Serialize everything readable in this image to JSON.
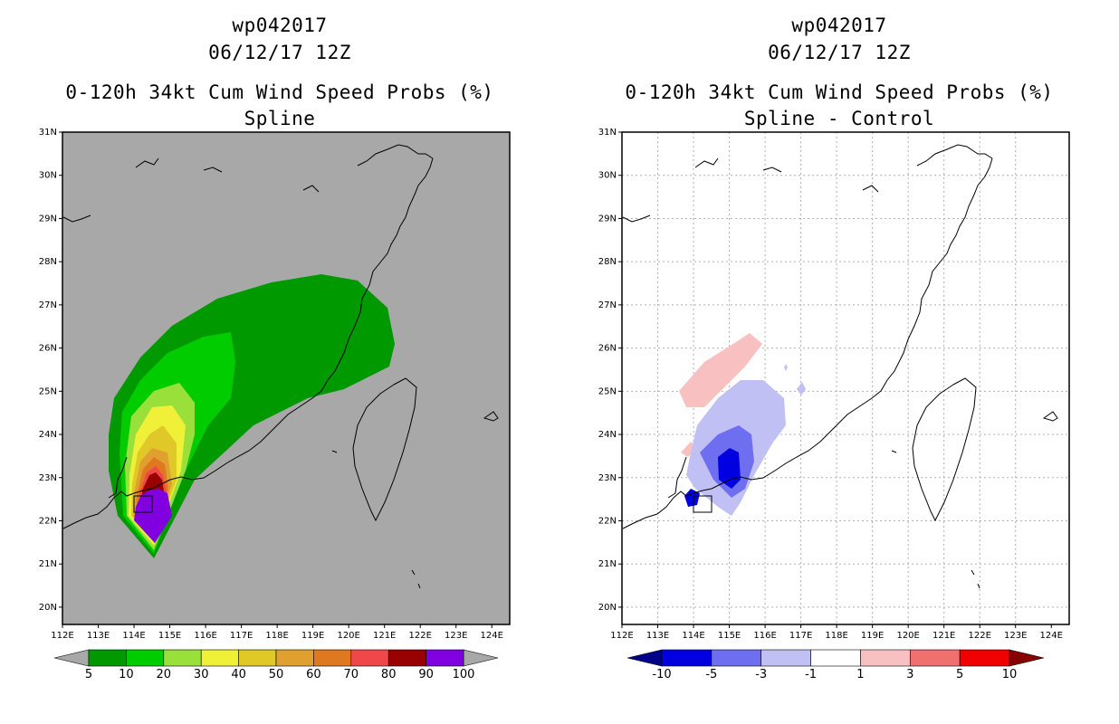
{
  "panels": [
    {
      "storm_id": "wp042017",
      "datetime": "06/12/17 12Z",
      "product": "0-120h 34kt Cum Wind Speed Probs (%)",
      "subtitle": "Spline",
      "background_color": "#a8a8a8",
      "colorbar": {
        "labels": [
          "5",
          "10",
          "20",
          "30",
          "40",
          "50",
          "60",
          "70",
          "80",
          "90",
          "100"
        ],
        "colors": [
          "#009900",
          "#00cc00",
          "#99e03a",
          "#f0f038",
          "#e0c828",
          "#e0a030",
          "#e07820",
          "#f04848",
          "#990000",
          "#8000e0"
        ],
        "end_colors": [
          "#a8a8a8",
          "#a8a8a8"
        ]
      }
    },
    {
      "storm_id": "wp042017",
      "datetime": "06/12/17 12Z",
      "product": "0-120h 34kt Cum Wind Speed Probs (%)",
      "subtitle": "Spline - Control",
      "background_color": "#ffffff",
      "colorbar": {
        "labels": [
          "-10",
          "-5",
          "-3",
          "-1",
          "1",
          "3",
          "5",
          "10"
        ],
        "colors": [
          "#0000e0",
          "#6e6ef0",
          "#c0c0f4",
          "#ffffff",
          "#f8c0c0",
          "#f07070",
          "#f00000"
        ],
        "end_colors": [
          "#000088",
          "#880000"
        ]
      }
    }
  ],
  "axes": {
    "lon_labels": [
      "112E",
      "113E",
      "114E",
      "115E",
      "116E",
      "117E",
      "118E",
      "119E",
      "120E",
      "121E",
      "122E",
      "123E",
      "124E"
    ],
    "lat_labels": [
      "31N",
      "30N",
      "29N",
      "28N",
      "27N",
      "26N",
      "25N",
      "24N",
      "23N",
      "22N",
      "21N",
      "20N"
    ],
    "lon_range": [
      112.0,
      124.5
    ],
    "lat_range": [
      19.6,
      31.0
    ]
  }
}
